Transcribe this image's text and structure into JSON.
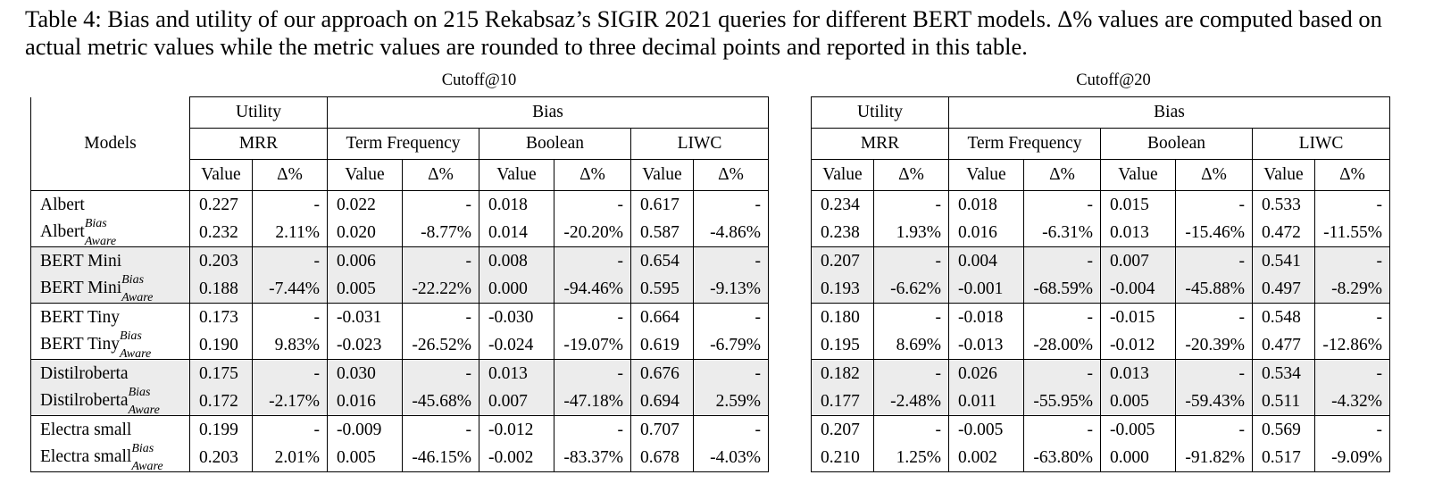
{
  "caption": "Table 4: Bias and utility of our approach on 215 Rekabsaz’s SIGIR 2021 queries for different BERT models. Δ% values are computed based on actual metric values while the metric values are rounded to three decimal points and reported in this table.",
  "models_header": "Models",
  "group_utility": "Utility",
  "group_bias": "Bias",
  "metrics": [
    "MRR",
    "Term Frequency",
    "Boolean",
    "LIWC"
  ],
  "value_label": "Value",
  "delta_label": "Δ%",
  "sup_bias": "Bias",
  "sub_aware": "Aware",
  "cutoffs": [
    {
      "title": "Cutoff@10",
      "rows": [
        {
          "model": "Albert",
          "aware": false,
          "vals": [
            "0.227",
            "-",
            "0.022",
            "-",
            "0.018",
            "-",
            "0.617",
            "-"
          ]
        },
        {
          "model": "Albert",
          "aware": true,
          "vals": [
            "0.232",
            "2.11%",
            "0.020",
            "-8.77%",
            "0.014",
            "-20.20%",
            "0.587",
            "-4.86%"
          ]
        },
        {
          "model": "BERT Mini",
          "aware": false,
          "vals": [
            "0.203",
            "-",
            "0.006",
            "-",
            "0.008",
            "-",
            "0.654",
            "-"
          ]
        },
        {
          "model": "BERT Mini",
          "aware": true,
          "vals": [
            "0.188",
            "-7.44%",
            "0.005",
            "-22.22%",
            "0.000",
            "-94.46%",
            "0.595",
            "-9.13%"
          ]
        },
        {
          "model": "BERT Tiny",
          "aware": false,
          "vals": [
            "0.173",
            "-",
            "-0.031",
            "-",
            "-0.030",
            "-",
            "0.664",
            "-"
          ]
        },
        {
          "model": "BERT Tiny",
          "aware": true,
          "vals": [
            "0.190",
            "9.83%",
            "-0.023",
            "-26.52%",
            "-0.024",
            "-19.07%",
            "0.619",
            "-6.79%"
          ]
        },
        {
          "model": "Distilroberta",
          "aware": false,
          "vals": [
            "0.175",
            "-",
            "0.030",
            "-",
            "0.013",
            "-",
            "0.676",
            "-"
          ]
        },
        {
          "model": "Distilroberta",
          "aware": true,
          "vals": [
            "0.172",
            "-2.17%",
            "0.016",
            "-45.68%",
            "0.007",
            "-47.18%",
            "0.694",
            "2.59%"
          ]
        },
        {
          "model": "Electra small",
          "aware": false,
          "vals": [
            "0.199",
            "-",
            "-0.009",
            "-",
            "-0.012",
            "-",
            "0.707",
            "-"
          ]
        },
        {
          "model": "Electra small",
          "aware": true,
          "vals": [
            "0.203",
            "2.01%",
            "0.005",
            "-46.15%",
            "-0.002",
            "-83.37%",
            "0.678",
            "-4.03%"
          ]
        }
      ]
    },
    {
      "title": "Cutoff@20",
      "rows": [
        {
          "model": "Albert",
          "aware": false,
          "vals": [
            "0.234",
            "-",
            "0.018",
            "-",
            "0.015",
            "-",
            "0.533",
            "-"
          ]
        },
        {
          "model": "Albert",
          "aware": true,
          "vals": [
            "0.238",
            "1.93%",
            "0.016",
            "-6.31%",
            "0.013",
            "-15.46%",
            "0.472",
            "-11.55%"
          ]
        },
        {
          "model": "BERT Mini",
          "aware": false,
          "vals": [
            "0.207",
            "-",
            "0.004",
            "-",
            "0.007",
            "-",
            "0.541",
            "-"
          ]
        },
        {
          "model": "BERT Mini",
          "aware": true,
          "vals": [
            "0.193",
            "-6.62%",
            "-0.001",
            "-68.59%",
            "-0.004",
            "-45.88%",
            "0.497",
            "-8.29%"
          ]
        },
        {
          "model": "BERT Tiny",
          "aware": false,
          "vals": [
            "0.180",
            "-",
            "-0.018",
            "-",
            "-0.015",
            "-",
            "0.548",
            "-"
          ]
        },
        {
          "model": "BERT Tiny",
          "aware": true,
          "vals": [
            "0.195",
            "8.69%",
            "-0.013",
            "-28.00%",
            "-0.012",
            "-20.39%",
            "0.477",
            "-12.86%"
          ]
        },
        {
          "model": "Distilroberta",
          "aware": false,
          "vals": [
            "0.182",
            "-",
            "0.026",
            "-",
            "0.013",
            "-",
            "0.534",
            "-"
          ]
        },
        {
          "model": "Distilroberta",
          "aware": true,
          "vals": [
            "0.177",
            "-2.48%",
            "0.011",
            "-55.95%",
            "0.005",
            "-59.43%",
            "0.511",
            "-4.32%"
          ]
        },
        {
          "model": "Electra small",
          "aware": false,
          "vals": [
            "0.207",
            "-",
            "-0.005",
            "-",
            "-0.005",
            "-",
            "0.569",
            "-"
          ]
        },
        {
          "model": "Electra small",
          "aware": true,
          "vals": [
            "0.210",
            "1.25%",
            "0.002",
            "-63.80%",
            "0.000",
            "-91.82%",
            "0.517",
            "-9.09%"
          ]
        }
      ]
    }
  ]
}
